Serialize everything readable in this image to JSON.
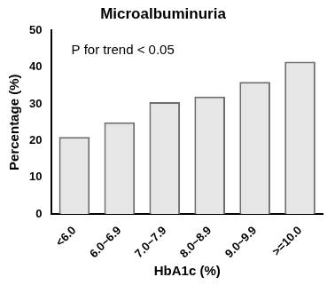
{
  "chart_data": {
    "type": "bar",
    "title": "Microalbuminuria",
    "annotation": "P for trend < 0.05",
    "x_label": "HbA1c (%)",
    "y_label": "Percentage (%)",
    "categories": [
      "<6.0",
      "6.0~6.9",
      "7.0~7.9",
      "8.0~8.9",
      "9.0~9.9",
      ">=10.0"
    ],
    "values": [
      21,
      25,
      30.5,
      32,
      36,
      41.5
    ],
    "color": "#e6e6e6",
    "ylim": [
      0,
      50
    ],
    "yticks": [
      0,
      10,
      20,
      30,
      40,
      50
    ],
    "grid": false
  }
}
